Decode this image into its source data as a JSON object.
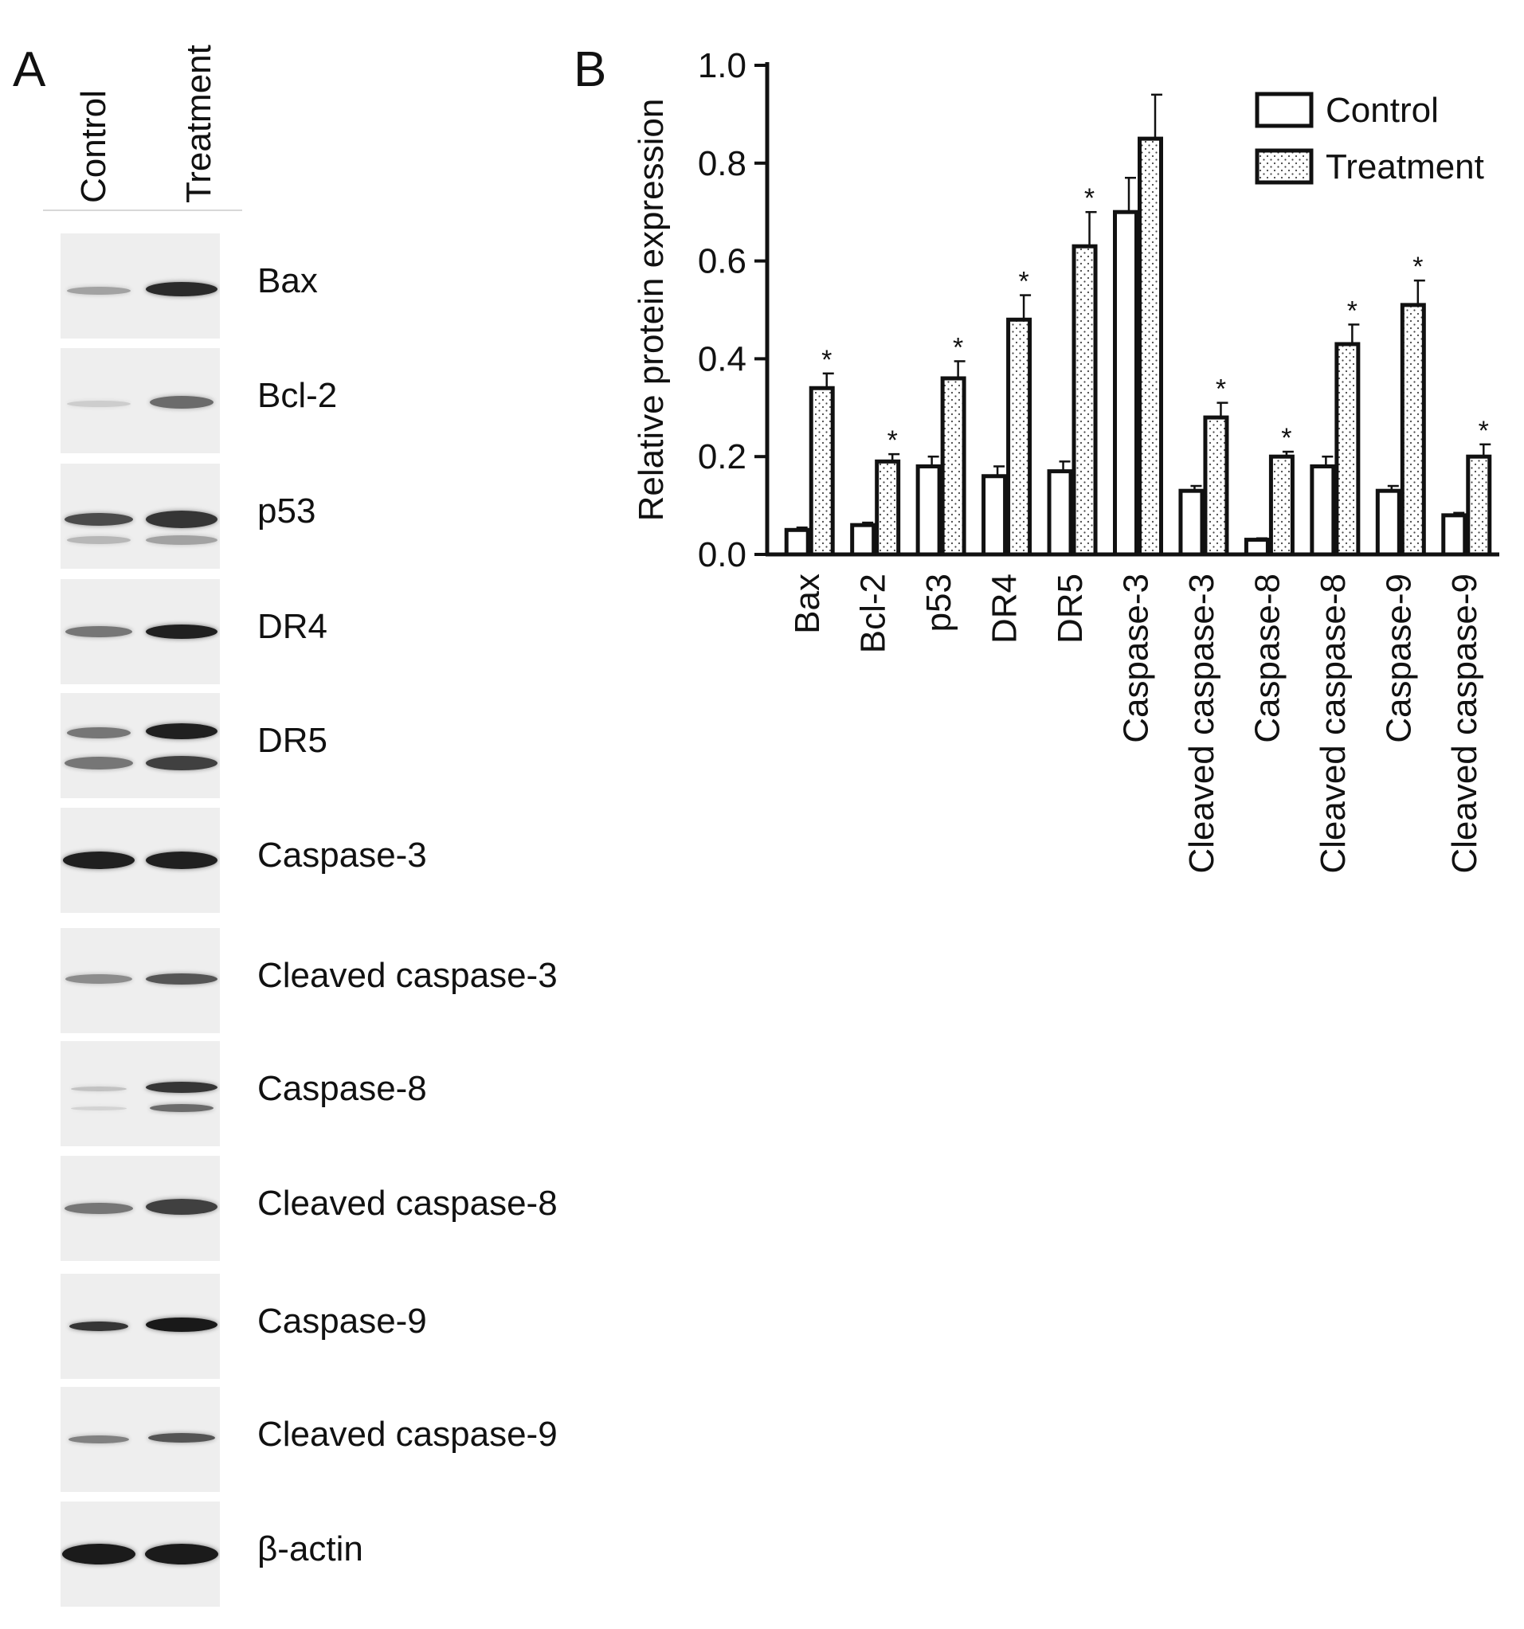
{
  "panels": {
    "a_label": "A",
    "b_label": "B"
  },
  "blot": {
    "lanes": [
      "Control",
      "Treatment"
    ],
    "rows": [
      {
        "label": "Bax"
      },
      {
        "label": "Bcl-2"
      },
      {
        "label": "p53"
      },
      {
        "label": "DR4"
      },
      {
        "label": "DR5"
      },
      {
        "label": "Caspase-3"
      },
      {
        "label": "Cleaved caspase-3"
      },
      {
        "label": "Caspase-8"
      },
      {
        "label": "Cleaved caspase-8"
      },
      {
        "label": "Caspase-9"
      },
      {
        "label": "Cleaved caspase-9"
      },
      {
        "label": "β-actin"
      }
    ]
  },
  "chart_data": {
    "type": "bar",
    "title": "",
    "xlabel": "",
    "ylabel": "Relative protein expression",
    "ylim": [
      0,
      1.0
    ],
    "yticks": [
      "0.0",
      "0.2",
      "0.4",
      "0.6",
      "0.8",
      "1.0"
    ],
    "categories": [
      "Bax",
      "Bcl-2",
      "p53",
      "DR4",
      "DR5",
      "Caspase-3",
      "Cleaved caspase-3",
      "Caspase-8",
      "Cleaved caspase-8",
      "Caspase-9",
      "Cleaved caspase-9"
    ],
    "series": [
      {
        "name": "Control",
        "fill": "#ffffff",
        "values": [
          0.05,
          0.06,
          0.18,
          0.16,
          0.17,
          0.7,
          0.13,
          0.03,
          0.18,
          0.13,
          0.08
        ],
        "errors": [
          0.005,
          0.005,
          0.02,
          0.02,
          0.02,
          0.07,
          0.01,
          0.003,
          0.02,
          0.01,
          0.005
        ]
      },
      {
        "name": "Treatment",
        "fill": "dotted",
        "values": [
          0.34,
          0.19,
          0.36,
          0.48,
          0.63,
          0.85,
          0.28,
          0.2,
          0.43,
          0.51,
          0.2
        ],
        "errors": [
          0.03,
          0.015,
          0.035,
          0.05,
          0.07,
          0.09,
          0.03,
          0.01,
          0.04,
          0.05,
          0.025
        ]
      }
    ],
    "significance_marker": "*",
    "significant": [
      true,
      true,
      true,
      true,
      true,
      false,
      true,
      true,
      true,
      true,
      true
    ],
    "legend_position": "top-right",
    "grid": false
  }
}
